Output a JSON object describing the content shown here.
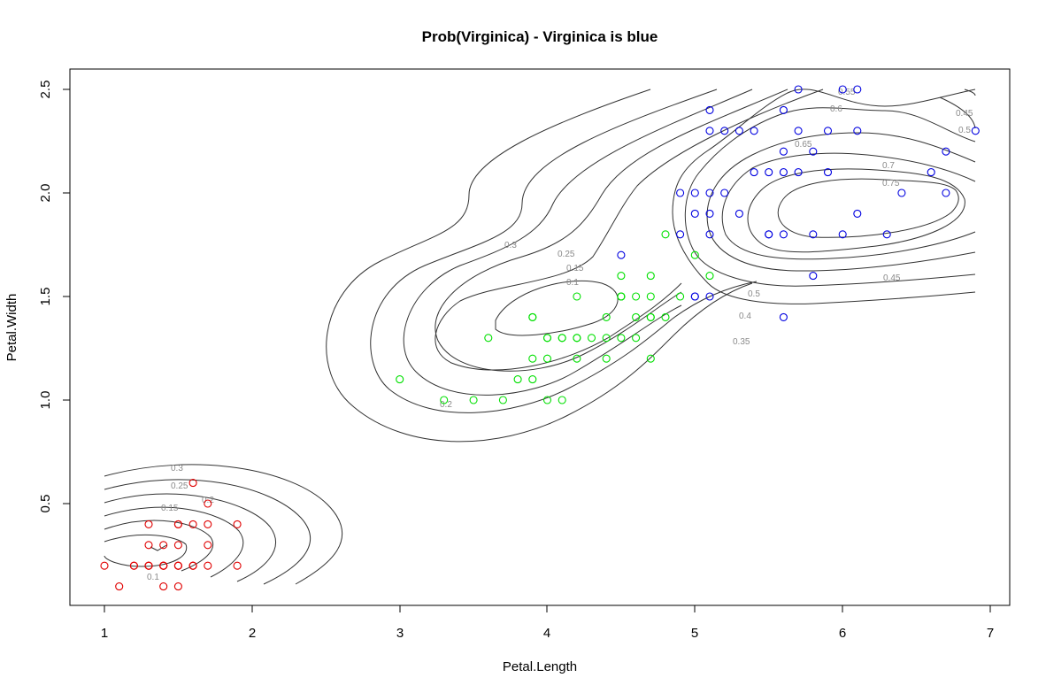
{
  "chart_data": {
    "type": "scatter",
    "title": "Prob(Virginica) - Virginica is blue",
    "xlabel": "Petal.Length",
    "ylabel": "Petal.Width",
    "xlim": [
      0.76,
      7.14
    ],
    "ylim": [
      0.0,
      2.6
    ],
    "x_ticks": [
      "1",
      "2",
      "3",
      "4",
      "5",
      "6",
      "7"
    ],
    "x_tick_values": [
      1,
      2,
      3,
      4,
      5,
      6,
      7
    ],
    "y_ticks": [
      "0.5",
      "1.0",
      "1.5",
      "2.0",
      "2.5"
    ],
    "y_tick_values": [
      0.5,
      1.0,
      1.5,
      2.0,
      2.5
    ],
    "grid": false,
    "legend": "none",
    "colors": {
      "setosa": "#e00000",
      "versicolor": "#00e000",
      "virginica": "#0000e0",
      "contour": "#333333",
      "contour_label": "#8a8a8a"
    },
    "series": [
      {
        "color": "red",
        "x": [
          1.0,
          1.1,
          1.2,
          1.2,
          1.3,
          1.3,
          1.3,
          1.3,
          1.4,
          1.4,
          1.4,
          1.4,
          1.4,
          1.5,
          1.5,
          1.5,
          1.5,
          1.5,
          1.5,
          1.6,
          1.6,
          1.6,
          1.6,
          1.7,
          1.7,
          1.7,
          1.7,
          1.9,
          1.9,
          1.5,
          1.4,
          1.3,
          1.6
        ],
        "y": [
          0.2,
          0.1,
          0.2,
          0.2,
          0.2,
          0.3,
          0.4,
          0.2,
          0.2,
          0.3,
          0.1,
          0.2,
          0.2,
          0.2,
          0.4,
          0.1,
          0.3,
          0.2,
          0.4,
          0.2,
          0.6,
          0.4,
          0.2,
          0.4,
          0.5,
          0.3,
          0.2,
          0.4,
          0.2,
          0.2,
          0.2,
          0.2,
          0.2
        ]
      },
      {
        "color": "green",
        "x": [
          3.0,
          3.3,
          3.5,
          3.6,
          3.7,
          3.8,
          3.9,
          3.9,
          3.9,
          4.0,
          4.0,
          4.0,
          4.0,
          4.1,
          4.1,
          4.1,
          4.2,
          4.2,
          4.2,
          4.3,
          4.4,
          4.4,
          4.4,
          4.5,
          4.5,
          4.5,
          4.5,
          4.6,
          4.6,
          4.6,
          4.7,
          4.7,
          4.7,
          4.7,
          4.8,
          4.8,
          4.9,
          5.0,
          5.1,
          3.9,
          4.2,
          4.5,
          4.7
        ],
        "y": [
          1.1,
          1.0,
          1.0,
          1.3,
          1.0,
          1.1,
          1.2,
          1.1,
          1.4,
          1.0,
          1.2,
          1.3,
          1.3,
          1.0,
          1.3,
          1.3,
          1.2,
          1.3,
          1.5,
          1.3,
          1.2,
          1.3,
          1.4,
          1.3,
          1.5,
          1.5,
          1.6,
          1.3,
          1.4,
          1.5,
          1.2,
          1.4,
          1.5,
          1.6,
          1.4,
          1.8,
          1.5,
          1.7,
          1.6,
          1.4,
          1.3,
          1.5,
          1.4
        ]
      },
      {
        "color": "blue",
        "x": [
          4.5,
          4.9,
          4.9,
          5.0,
          5.0,
          5.0,
          5.0,
          5.1,
          5.1,
          5.1,
          5.1,
          5.1,
          5.1,
          5.2,
          5.2,
          5.3,
          5.3,
          5.4,
          5.4,
          5.5,
          5.5,
          5.5,
          5.6,
          5.6,
          5.6,
          5.6,
          5.6,
          5.7,
          5.7,
          5.7,
          5.8,
          5.8,
          5.8,
          5.9,
          5.9,
          6.0,
          6.0,
          6.1,
          6.1,
          6.1,
          6.3,
          6.4,
          6.6,
          6.7,
          6.7,
          6.9
        ],
        "y": [
          1.7,
          1.8,
          2.0,
          1.5,
          1.9,
          2.0,
          1.5,
          1.9,
          2.0,
          2.3,
          2.4,
          1.8,
          1.5,
          2.0,
          2.3,
          2.3,
          1.9,
          2.1,
          2.3,
          1.8,
          2.1,
          1.8,
          1.8,
          2.1,
          2.2,
          2.4,
          1.4,
          2.1,
          2.3,
          2.5,
          1.6,
          1.8,
          2.2,
          2.1,
          2.3,
          1.8,
          2.5,
          1.9,
          2.3,
          2.5,
          1.8,
          2.0,
          2.1,
          2.0,
          2.2,
          2.3
        ]
      }
    ],
    "contour_labels": [
      "0.1",
      "0.15",
      "0.2",
      "0.25",
      "0.3",
      "0.35",
      "0.4",
      "0.45",
      "0.5",
      "0.55",
      "0.6",
      "0.65",
      "0.7",
      "0.75"
    ]
  }
}
